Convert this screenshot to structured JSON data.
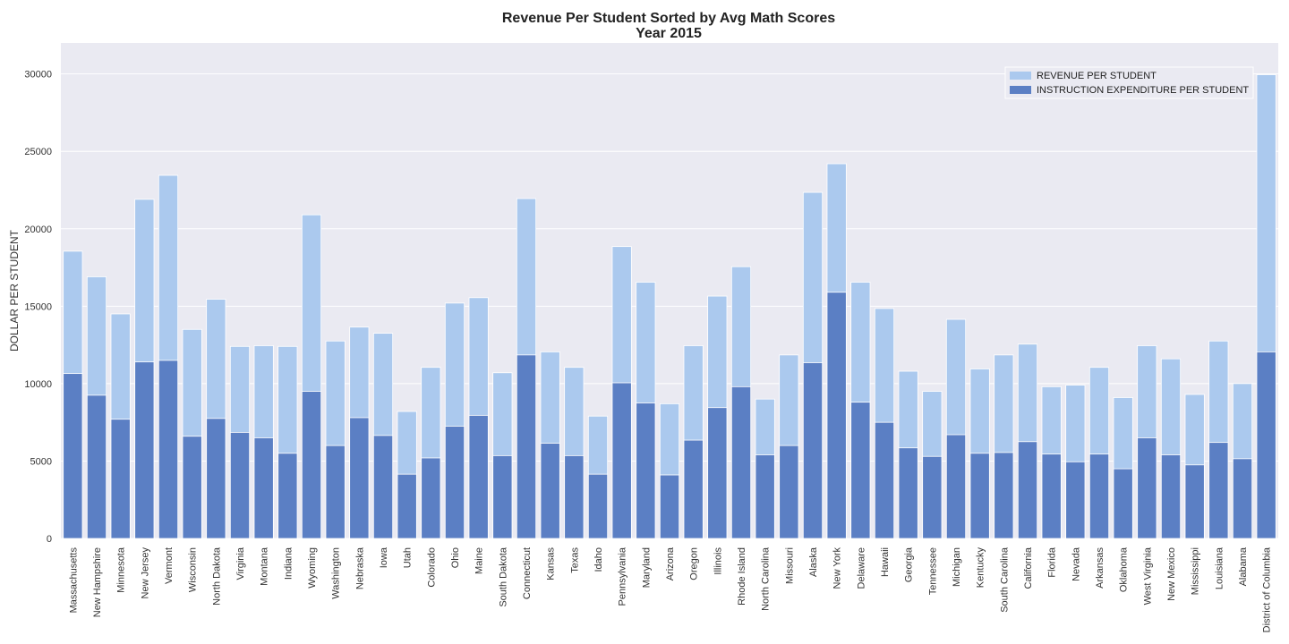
{
  "chart_data": {
    "type": "bar",
    "title": "Revenue Per Student Sorted by Avg Math Scores",
    "subtitle": "Year 2015",
    "xlabel": "",
    "ylabel": "DOLLAR PER STUDENT",
    "ylim": [
      0,
      32000
    ],
    "yticks": [
      0,
      5000,
      10000,
      15000,
      20000,
      25000,
      30000
    ],
    "grid": true,
    "legend_position": "top-right",
    "categories": [
      "Massachusetts",
      "New Hampshire",
      "Minnesota",
      "New Jersey",
      "Vermont",
      "Wisconsin",
      "North Dakota",
      "Virginia",
      "Montana",
      "Indiana",
      "Wyoming",
      "Washington",
      "Nebraska",
      "Iowa",
      "Utah",
      "Colorado",
      "Ohio",
      "Maine",
      "South Dakota",
      "Connecticut",
      "Kansas",
      "Texas",
      "Idaho",
      "Pennsylvania",
      "Maryland",
      "Arizona",
      "Oregon",
      "Illinois",
      "Rhode Island",
      "North Carolina",
      "Missouri",
      "Alaska",
      "New York",
      "Delaware",
      "Hawaii",
      "Georgia",
      "Tennessee",
      "Michigan",
      "Kentucky",
      "South Carolina",
      "California",
      "Florida",
      "Nevada",
      "Arkansas",
      "Oklahoma",
      "West Virginia",
      "New Mexico",
      "Mississippi",
      "Louisiana",
      "Alabama",
      "District of Columbia"
    ],
    "series": [
      {
        "name": "REVENUE PER STUDENT",
        "color": "#abc9ee",
        "values": [
          18550,
          16900,
          14500,
          21900,
          23450,
          13500,
          15450,
          12400,
          12450,
          12400,
          20900,
          12750,
          13650,
          13250,
          8200,
          11050,
          15200,
          15550,
          10700,
          21950,
          12050,
          11050,
          7900,
          18850,
          16550,
          8700,
          12450,
          15650,
          17550,
          9000,
          11850,
          22350,
          24200,
          16550,
          14850,
          10800,
          9500,
          14150,
          10950,
          11850,
          12550,
          9800,
          9900,
          11050,
          9100,
          12450,
          11600,
          9300,
          12750,
          10000,
          29950
        ]
      },
      {
        "name": "INSTRUCTION EXPENDITURE PER STUDENT",
        "color": "#5b7fc4",
        "values": [
          10650,
          9250,
          7700,
          11400,
          11500,
          6600,
          7750,
          6850,
          6500,
          5500,
          9500,
          6000,
          7800,
          6650,
          4150,
          5200,
          7250,
          7950,
          5350,
          11850,
          6150,
          5350,
          4150,
          10050,
          8750,
          4100,
          6350,
          8450,
          9800,
          5400,
          6000,
          11350,
          15900,
          8800,
          7500,
          5850,
          5300,
          6700,
          5500,
          5550,
          6250,
          5450,
          4950,
          5450,
          4500,
          6500,
          5400,
          4750,
          6200,
          5150,
          12050
        ]
      }
    ]
  }
}
